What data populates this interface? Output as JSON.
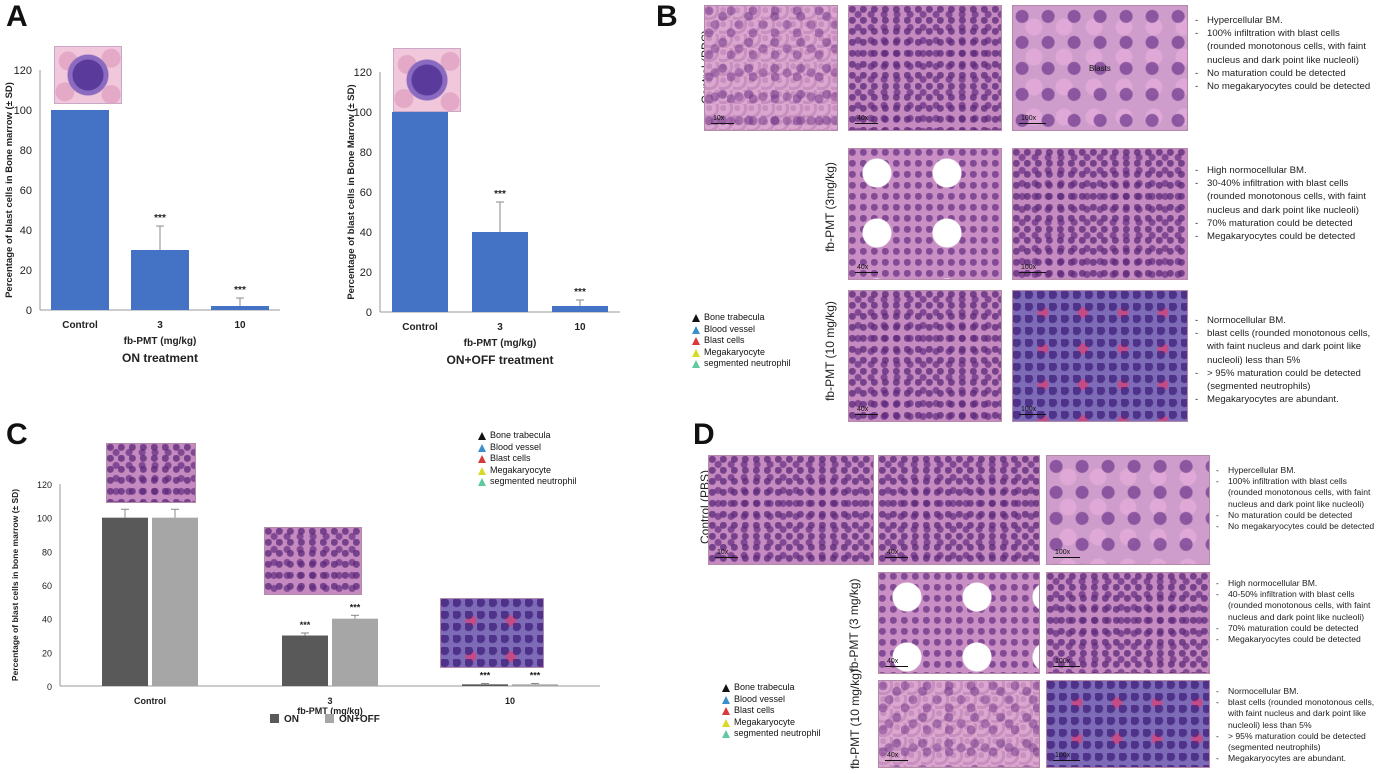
{
  "panel_letters": {
    "a": "A",
    "b": "B",
    "c": "C",
    "d": "D"
  },
  "colors": {
    "bar_blue": "#4472c4",
    "bar_on": "#595959",
    "bar_onoff": "#a6a6a6"
  },
  "chart_data": [
    {
      "type": "bar",
      "panel": "A",
      "title": "ON treatment",
      "xlabel": "fb-PMT (mg/kg)",
      "ylabel": "Percentage of blast cells in Bone marrow (± SD)",
      "categories": [
        "Control",
        "3",
        "10"
      ],
      "values": [
        100,
        30,
        2
      ],
      "errors": [
        0,
        12,
        4
      ],
      "significance": [
        "",
        "***",
        "***"
      ],
      "ylim": [
        0,
        120
      ],
      "yticks": [
        "0",
        "20",
        "40",
        "60",
        "80",
        "100",
        "120"
      ],
      "grid": false
    },
    {
      "type": "bar",
      "panel": "A",
      "title": "ON+OFF treatment",
      "xlabel": "fb-PMT (mg/kg)",
      "ylabel": "Percentage of blast cells in Bone Marrow (± SD)",
      "categories": [
        "Control",
        "3",
        "10"
      ],
      "values": [
        100,
        40,
        3
      ],
      "errors": [
        0,
        15,
        3
      ],
      "significance": [
        "",
        "***",
        "***"
      ],
      "ylim": [
        0,
        120
      ],
      "yticks": [
        "0",
        "20",
        "40",
        "60",
        "80",
        "100",
        "120"
      ],
      "grid": false
    },
    {
      "type": "bar",
      "panel": "C",
      "xlabel": "fb-PMT (mg/kg)",
      "ylabel": "Percentage of blast cells in bone marrow (± SD)",
      "categories": [
        "Control",
        "3",
        "10"
      ],
      "series": [
        {
          "name": "ON",
          "values": [
            100,
            30,
            1
          ],
          "errors": [
            5,
            1.5,
            0.5
          ],
          "significance": [
            "",
            "***",
            "***"
          ]
        },
        {
          "name": "ON+OFF",
          "values": [
            100,
            40,
            1
          ],
          "errors": [
            5,
            2,
            0.5
          ],
          "significance": [
            "",
            "***",
            "***"
          ]
        }
      ],
      "ylim": [
        0,
        120
      ],
      "yticks": [
        "0",
        "20",
        "40",
        "60",
        "80",
        "100",
        "120"
      ],
      "legend": "bottom-center",
      "grid": false
    }
  ],
  "legend_labels": [
    "Bone trabecula",
    "Blood vessel",
    "Blast cells",
    "Megakaryocyte",
    "segmented neutrophil"
  ],
  "legend_colors": [
    "#111111",
    "#3a8fc9",
    "#d63a3a",
    "#d9d92a",
    "#5fc9a0"
  ],
  "panel_b": {
    "row_labels": [
      "Control (PBS)",
      "fb-PMT (3mg/kg)",
      "fb-PMT (10 mg/kg)"
    ],
    "scale_labels": {
      "r1": [
        "10x",
        "40x",
        "100x"
      ],
      "r2": [
        "40x",
        "100x"
      ],
      "r3": [
        "40x",
        "100x"
      ]
    },
    "blasts_label": "Blasts",
    "desc": [
      [
        "Hypercellular BM.",
        "100% infiltration with blast cells (rounded monotonous cells, with faint nucleus and dark point like nucleoli)",
        "No maturation could be detected",
        "No megakaryocytes could be detected"
      ],
      [
        "High normocellular BM.",
        "30-40% infiltration with blast cells (rounded monotonous cells, with faint nucleus and dark point like nucleoli)",
        "70% maturation could be detected",
        "Megakaryocytes could be detected"
      ],
      [
        "Normocellular BM.",
        "blast cells (rounded monotonous cells, with faint nucleus and dark point like nucleoli) less than 5%",
        "> 95% maturation could be detected (segmented neutrophils)",
        "Megakaryocytes are abundant."
      ]
    ]
  },
  "panel_d": {
    "row_labels": [
      "Control (PBS)",
      "fb-PMT (3 mg/kg)",
      "fb-PMT (10 mg/kg)"
    ],
    "scale_labels": {
      "r1": [
        "10x",
        "40x",
        "100x"
      ],
      "r2": [
        "40x",
        "100x"
      ],
      "r3": [
        "40x",
        "100x"
      ]
    },
    "desc": [
      [
        "Hypercellular BM.",
        "100% infiltration with blast cells (rounded monotonous cells, with faint nucleus and dark point like nucleoli)",
        "No maturation could be detected",
        "No megakaryocytes could be detected"
      ],
      [
        "High normocellular BM.",
        "40-50% infiltration with blast cells (rounded monotonous cells, with faint nucleus and dark point like nucleoli)",
        "70% maturation could be detected",
        "Megakaryocytes could be detected"
      ],
      [
        "Normocellular BM.",
        "blast cells (rounded monotonous cells, with faint nucleus and dark point like nucleoli) less than 5%",
        "> 95% maturation could be detected (segmented neutrophils)",
        "Megakaryocytes are abundant."
      ]
    ]
  }
}
